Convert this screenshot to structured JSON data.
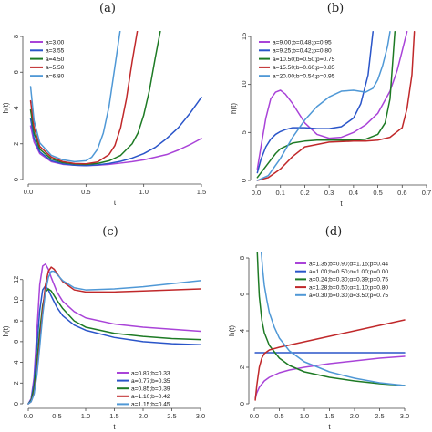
{
  "chart_data": [
    {
      "type": "line",
      "panel": "(a)",
      "xlabel": "t",
      "ylabel": "h(t)",
      "xlim": [
        0,
        1.5
      ],
      "ylim": [
        0,
        8
      ],
      "xticks": [
        "0.0",
        "0.5",
        "1.0",
        "1.5"
      ],
      "yticks": [
        "0",
        "2",
        "4",
        "6",
        "8"
      ],
      "legend_position": "top-left",
      "series": [
        {
          "name": "a=3.00",
          "color": "#a943d8",
          "x": [
            0.02,
            0.05,
            0.1,
            0.2,
            0.3,
            0.4,
            0.5,
            0.6,
            0.7,
            0.8,
            0.9,
            1.0,
            1.1,
            1.2,
            1.3,
            1.4,
            1.5
          ],
          "y": [
            3.0,
            2.1,
            1.45,
            1.0,
            0.85,
            0.8,
            0.78,
            0.8,
            0.85,
            0.92,
            1.0,
            1.1,
            1.25,
            1.4,
            1.65,
            1.95,
            2.3
          ]
        },
        {
          "name": "a=3.55",
          "color": "#2a55c9",
          "x": [
            0.02,
            0.05,
            0.1,
            0.2,
            0.3,
            0.4,
            0.5,
            0.6,
            0.7,
            0.8,
            0.9,
            1.0,
            1.1,
            1.2,
            1.3,
            1.4,
            1.5
          ],
          "y": [
            3.4,
            2.3,
            1.55,
            1.05,
            0.88,
            0.8,
            0.78,
            0.82,
            0.9,
            1.02,
            1.2,
            1.45,
            1.8,
            2.3,
            2.9,
            3.7,
            4.6
          ]
        },
        {
          "name": "a=4.50",
          "color": "#1d7a24",
          "x": [
            0.02,
            0.05,
            0.1,
            0.2,
            0.3,
            0.4,
            0.5,
            0.6,
            0.7,
            0.8,
            0.9,
            0.95,
            1.0,
            1.05,
            1.1,
            1.15
          ],
          "y": [
            3.9,
            2.6,
            1.7,
            1.15,
            0.95,
            0.87,
            0.85,
            0.9,
            1.05,
            1.35,
            2.0,
            2.6,
            3.6,
            5.0,
            6.8,
            8.5
          ]
        },
        {
          "name": "a=5.50",
          "color": "#c0282a",
          "x": [
            0.02,
            0.05,
            0.1,
            0.2,
            0.3,
            0.4,
            0.5,
            0.6,
            0.7,
            0.75,
            0.8,
            0.85,
            0.9,
            0.95
          ],
          "y": [
            4.4,
            2.9,
            1.85,
            1.25,
            1.0,
            0.9,
            0.88,
            0.98,
            1.4,
            1.9,
            2.9,
            4.5,
            6.6,
            8.5
          ]
        },
        {
          "name": "a=6.80",
          "color": "#4f98d6",
          "x": [
            0.02,
            0.05,
            0.1,
            0.2,
            0.3,
            0.4,
            0.5,
            0.55,
            0.6,
            0.65,
            0.7,
            0.75,
            0.8
          ],
          "y": [
            5.2,
            3.3,
            2.05,
            1.35,
            1.1,
            1.0,
            1.05,
            1.25,
            1.7,
            2.6,
            4.1,
            6.3,
            8.5
          ]
        }
      ]
    },
    {
      "type": "line",
      "panel": "(b)",
      "xlabel": "t",
      "ylabel": "h(t)",
      "xlim": [
        0,
        0.7
      ],
      "ylim": [
        0,
        15
      ],
      "xticks": [
        "0.0",
        "0.1",
        "0.2",
        "0.3",
        "0.4",
        "0.5",
        "0.6",
        "0.7"
      ],
      "yticks": [
        "0",
        "5",
        "10",
        "15"
      ],
      "legend_position": "top-left",
      "series": [
        {
          "name": "a=9.00;b=0.48;p=0.95",
          "color": "#a943d8",
          "x": [
            0.005,
            0.02,
            0.04,
            0.06,
            0.08,
            0.1,
            0.12,
            0.15,
            0.2,
            0.25,
            0.3,
            0.35,
            0.4,
            0.45,
            0.5,
            0.55,
            0.58,
            0.6,
            0.62
          ],
          "y": [
            1.2,
            3.5,
            6.5,
            8.5,
            9.2,
            9.4,
            9.0,
            8.0,
            6.0,
            4.8,
            4.4,
            4.5,
            5.0,
            5.8,
            7.0,
            9.3,
            11.5,
            13.5,
            15.5
          ]
        },
        {
          "name": "a=9.25;b=0.42;p=0.80",
          "color": "#2a55c9",
          "x": [
            0.005,
            0.02,
            0.04,
            0.06,
            0.08,
            0.1,
            0.12,
            0.15,
            0.2,
            0.25,
            0.3,
            0.35,
            0.4,
            0.43,
            0.46,
            0.48
          ],
          "y": [
            0.8,
            2.2,
            3.5,
            4.3,
            4.8,
            5.1,
            5.3,
            5.5,
            5.5,
            5.4,
            5.4,
            5.6,
            6.5,
            8.0,
            11.0,
            15.5
          ]
        },
        {
          "name": "a=10.50;b=0.50;p=0.75",
          "color": "#1d7a24",
          "x": [
            0.005,
            0.02,
            0.05,
            0.08,
            0.1,
            0.15,
            0.2,
            0.25,
            0.3,
            0.35,
            0.4,
            0.45,
            0.5,
            0.53,
            0.55,
            0.57
          ],
          "y": [
            0.3,
            0.8,
            1.8,
            2.8,
            3.3,
            3.9,
            4.1,
            4.2,
            4.2,
            4.2,
            4.2,
            4.3,
            4.8,
            6.0,
            8.5,
            15.5
          ]
        },
        {
          "name": "a=15.50;b=0.60;p=0.85",
          "color": "#c0282a",
          "x": [
            0.005,
            0.05,
            0.1,
            0.15,
            0.2,
            0.3,
            0.4,
            0.45,
            0.5,
            0.55,
            0.6,
            0.62,
            0.64,
            0.65
          ],
          "y": [
            0.0,
            0.3,
            1.2,
            2.5,
            3.5,
            4.0,
            4.1,
            4.1,
            4.2,
            4.5,
            5.5,
            7.5,
            11.0,
            15.5
          ]
        },
        {
          "name": "a=20.00;b=0.54;p=0.95",
          "color": "#4f98d6",
          "x": [
            0.005,
            0.05,
            0.1,
            0.15,
            0.2,
            0.25,
            0.3,
            0.35,
            0.4,
            0.45,
            0.48,
            0.5,
            0.52,
            0.54,
            0.55
          ],
          "y": [
            0.0,
            0.5,
            2.3,
            4.5,
            6.3,
            7.7,
            8.7,
            9.3,
            9.4,
            9.2,
            9.6,
            10.5,
            12.0,
            14.0,
            15.5
          ]
        }
      ]
    },
    {
      "type": "line",
      "panel": "(c)",
      "xlabel": "t",
      "ylabel": "h(t)",
      "xlim": [
        0,
        3
      ],
      "ylim": [
        0,
        14
      ],
      "xticks": [
        "0.0",
        "0.5",
        "1.0",
        "1.5",
        "2.0",
        "2.5",
        "3.0"
      ],
      "yticks": [
        "0",
        "2",
        "4",
        "6",
        "8",
        "10",
        "12"
      ],
      "legend_position": "bottom-right",
      "series": [
        {
          "name": "a=0.87;b=0.33",
          "color": "#a943d8",
          "x": [
            0,
            0.05,
            0.1,
            0.15,
            0.2,
            0.25,
            0.3,
            0.35,
            0.4,
            0.5,
            0.6,
            0.8,
            1.0,
            1.5,
            2.0,
            2.5,
            3.0
          ],
          "y": [
            0,
            0.5,
            2.5,
            7.0,
            11.5,
            13.3,
            13.5,
            13.0,
            12.2,
            10.8,
            9.9,
            8.9,
            8.3,
            7.7,
            7.4,
            7.2,
            7.0
          ]
        },
        {
          "name": "a=0.77;b=0.35",
          "color": "#2a55c9",
          "x": [
            0,
            0.05,
            0.1,
            0.15,
            0.2,
            0.25,
            0.3,
            0.35,
            0.4,
            0.5,
            0.6,
            0.8,
            1.0,
            1.5,
            2.0,
            2.5,
            3.0
          ],
          "y": [
            0,
            0.4,
            2.0,
            5.5,
            9.0,
            11.0,
            11.4,
            11.0,
            10.4,
            9.3,
            8.5,
            7.6,
            7.1,
            6.4,
            6.0,
            5.8,
            5.7
          ]
        },
        {
          "name": "a=0.85;b=0.39",
          "color": "#1d7a24",
          "x": [
            0,
            0.05,
            0.1,
            0.15,
            0.2,
            0.25,
            0.3,
            0.35,
            0.4,
            0.5,
            0.6,
            0.8,
            1.0,
            1.5,
            2.0,
            2.5,
            3.0
          ],
          "y": [
            0,
            0.3,
            1.5,
            4.0,
            7.0,
            9.5,
            10.8,
            11.1,
            10.9,
            10.0,
            9.2,
            8.0,
            7.4,
            6.8,
            6.5,
            6.3,
            6.2
          ]
        },
        {
          "name": "a=1.10;b=0.42",
          "color": "#c0282a",
          "x": [
            0,
            0.05,
            0.1,
            0.15,
            0.2,
            0.25,
            0.3,
            0.35,
            0.4,
            0.45,
            0.5,
            0.6,
            0.8,
            1.0,
            1.5,
            2.0,
            2.5,
            3.0
          ],
          "y": [
            0,
            0.2,
            1.0,
            3.0,
            6.0,
            9.0,
            11.5,
            12.8,
            13.2,
            13.0,
            12.6,
            11.8,
            11.0,
            10.8,
            10.8,
            10.9,
            11.0,
            11.1
          ]
        },
        {
          "name": "a=1.15;b=0.45",
          "color": "#4f98d6",
          "x": [
            0,
            0.05,
            0.1,
            0.15,
            0.2,
            0.25,
            0.3,
            0.35,
            0.4,
            0.45,
            0.5,
            0.6,
            0.8,
            1.0,
            1.5,
            2.0,
            2.5,
            3.0
          ],
          "y": [
            0,
            0.2,
            0.9,
            2.7,
            5.5,
            8.5,
            10.8,
            12.2,
            12.8,
            12.8,
            12.5,
            11.9,
            11.2,
            11.0,
            11.1,
            11.3,
            11.6,
            11.9
          ]
        }
      ]
    },
    {
      "type": "line",
      "panel": "(d)",
      "xlabel": "t",
      "ylabel": "h(t)",
      "xlim": [
        0,
        3
      ],
      "ylim": [
        0,
        8
      ],
      "xticks": [
        "0.0",
        "0.5",
        "1.0",
        "1.5",
        "2.0",
        "2.5",
        "3.0"
      ],
      "yticks": [
        "0",
        "2",
        "4",
        "6",
        "8"
      ],
      "legend_position": "top-right",
      "series": [
        {
          "name": "a=1.35;b=0.90;α=1.15;p=0.44",
          "color": "#a943d8",
          "x": [
            0.02,
            0.05,
            0.1,
            0.2,
            0.3,
            0.5,
            0.7,
            1.0,
            1.5,
            2.0,
            2.5,
            3.0
          ],
          "y": [
            0.3,
            0.6,
            0.9,
            1.25,
            1.45,
            1.7,
            1.85,
            2.0,
            2.2,
            2.35,
            2.5,
            2.6
          ]
        },
        {
          "name": "a=1.00;b=0.50;α=1.00;p=0.00",
          "color": "#2a55c9",
          "x": [
            0.02,
            0.5,
            1.0,
            1.5,
            2.0,
            2.5,
            3.0
          ],
          "y": [
            2.8,
            2.8,
            2.8,
            2.8,
            2.8,
            2.8,
            2.8
          ]
        },
        {
          "name": "a=0.24;b=0.30;α=0.39;p=0.75",
          "color": "#1d7a24",
          "x": [
            0.06,
            0.08,
            0.1,
            0.15,
            0.2,
            0.3,
            0.5,
            0.7,
            1.0,
            1.5,
            2.0,
            2.5,
            3.0
          ],
          "y": [
            8.3,
            7.0,
            5.9,
            4.6,
            3.9,
            3.2,
            2.5,
            2.1,
            1.75,
            1.45,
            1.25,
            1.1,
            1.0
          ]
        },
        {
          "name": "a=1.28;b=0.50;α=1.10;p=0.80",
          "color": "#c0282a",
          "x": [
            0.02,
            0.05,
            0.1,
            0.15,
            0.2,
            0.3,
            0.5,
            1.0,
            1.5,
            2.0,
            2.5,
            3.0
          ],
          "y": [
            0.2,
            1.0,
            2.0,
            2.5,
            2.75,
            2.95,
            3.1,
            3.4,
            3.7,
            4.0,
            4.3,
            4.6
          ]
        },
        {
          "name": "a=0.30;b=0.30;α=3.50;p=0.75",
          "color": "#4f98d6",
          "x": [
            0.14,
            0.17,
            0.2,
            0.25,
            0.3,
            0.4,
            0.5,
            0.7,
            1.0,
            1.5,
            2.0,
            2.5,
            3.0
          ],
          "y": [
            8.3,
            7.3,
            6.5,
            5.7,
            5.0,
            4.2,
            3.6,
            2.9,
            2.3,
            1.75,
            1.4,
            1.15,
            1.0
          ]
        }
      ]
    }
  ]
}
